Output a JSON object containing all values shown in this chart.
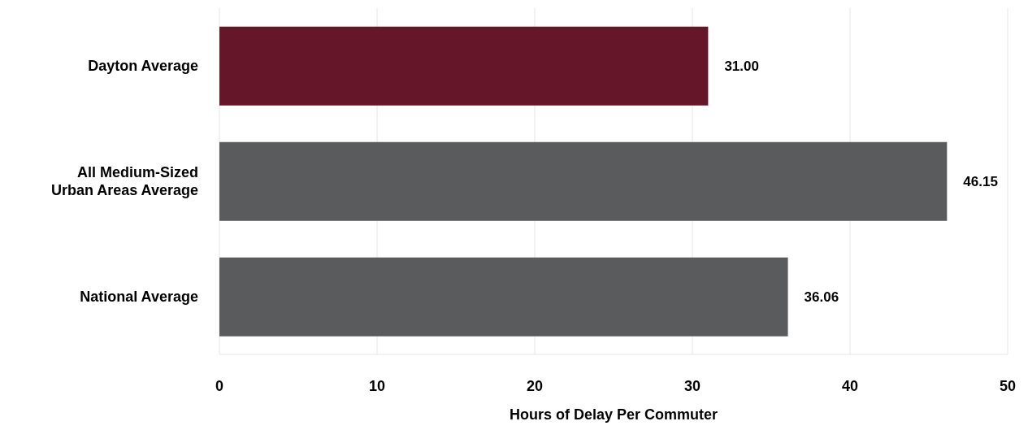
{
  "chart_data": {
    "type": "bar",
    "orientation": "horizontal",
    "xlabel": "Hours of Delay Per Commuter",
    "categories": [
      "Dayton Average",
      "All Medium-Sized Urban Areas Average",
      "National Average"
    ],
    "values": [
      31.0,
      46.15,
      36.06
    ],
    "colors": [
      "#661629",
      "#5a5b5d",
      "#5a5b5d"
    ],
    "value_labels": [
      "31.00",
      "46.15",
      "36.06"
    ],
    "xlim": [
      0,
      50
    ],
    "xticks": [
      0,
      10,
      20,
      30,
      40,
      50
    ],
    "grid": "x"
  }
}
